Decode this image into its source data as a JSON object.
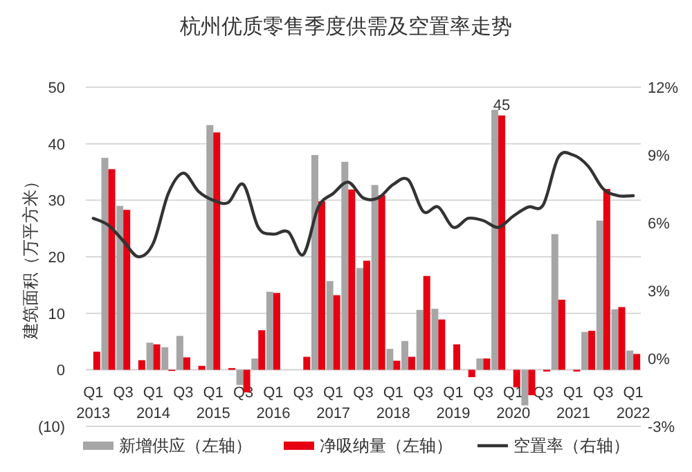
{
  "chart_data": {
    "type": "bar",
    "title": "杭州优质零售季度供需及空置率走势",
    "ylabel": "建筑面积（万平方米）",
    "categories": [
      "Q1\n2013",
      null,
      "Q3",
      null,
      "Q1\n2014",
      null,
      "Q3",
      null,
      "Q1\n2015",
      null,
      "Q3",
      null,
      "Q1\n2016",
      null,
      "Q3",
      null,
      "Q1\n2017",
      null,
      "Q3",
      null,
      "Q1\n2018",
      null,
      "Q3",
      null,
      "Q1\n2019",
      null,
      "Q3",
      null,
      "Q1\n2020",
      null,
      "Q3",
      null,
      "Q1\n2021",
      null,
      "Q3",
      null,
      "Q1\n2022"
    ],
    "ylim": [
      -10,
      50
    ],
    "yticks": [
      {
        "value": -10,
        "label": "(10)"
      },
      0,
      10,
      20,
      30,
      40,
      50
    ],
    "y2lim": [
      -3,
      12
    ],
    "y2ticks": [
      {
        "value": -3,
        "label": "-3%"
      },
      {
        "value": 0,
        "label": "0%"
      },
      {
        "value": 3,
        "label": "3%"
      },
      {
        "value": 6,
        "label": "6%"
      },
      {
        "value": 9,
        "label": "9%"
      },
      {
        "value": 12,
        "label": "12%"
      }
    ],
    "grid": "y",
    "legend": "bottom",
    "series": [
      {
        "name": "新增供应（左轴）",
        "color": "#a6a6a6",
        "values": [
          0,
          37.5,
          29,
          0,
          4.8,
          4.0,
          6.0,
          0,
          43.3,
          0,
          -2.7,
          2,
          13.8,
          0,
          0,
          38.0,
          15.7,
          36.8,
          18.0,
          32.7,
          3.7,
          5.1,
          10.6,
          10.8,
          0,
          0,
          2.0,
          46,
          0,
          -6.3,
          0,
          24.0,
          0,
          6.7,
          26.4,
          10.7,
          3.4
        ]
      },
      {
        "name": "净吸纳量（左轴）",
        "color": "#e60012",
        "values": [
          3.2,
          35.5,
          28.3,
          1.7,
          4.5,
          -0.2,
          2.2,
          0.7,
          42,
          0.3,
          -4.0,
          7,
          13.6,
          0,
          2.3,
          29.8,
          13.2,
          31.9,
          19.3,
          30.9,
          1.6,
          2.3,
          16.6,
          8.9,
          4.5,
          -1.3,
          2.0,
          45,
          -3.1,
          -4.5,
          -0.3,
          12.4,
          -0.3,
          6.9,
          32.0,
          11.1,
          2.8
        ],
        "value_labels": [
          null,
          null,
          null,
          null,
          null,
          null,
          null,
          null,
          null,
          null,
          null,
          null,
          null,
          null,
          null,
          null,
          null,
          null,
          null,
          null,
          null,
          null,
          null,
          null,
          null,
          null,
          null,
          "45",
          null,
          null,
          null,
          null,
          null,
          null,
          null,
          null,
          null
        ]
      },
      {
        "name": "空置率（右轴）",
        "type": "line",
        "axis": "y2",
        "color": "#333333",
        "values": [
          6.2,
          5.9,
          5.2,
          4.5,
          5.1,
          7.3,
          8.2,
          7.4,
          7.0,
          6.9,
          7.7,
          5.8,
          5.5,
          5.6,
          4.6,
          6.7,
          7.3,
          7.8,
          7.1,
          7.1,
          7.7,
          7.9,
          6.5,
          6.7,
          5.8,
          6.2,
          6.1,
          5.8,
          6.3,
          6.7,
          6.8,
          8.9,
          9.0,
          8.5,
          7.5,
          7.2,
          7.2
        ]
      }
    ]
  }
}
